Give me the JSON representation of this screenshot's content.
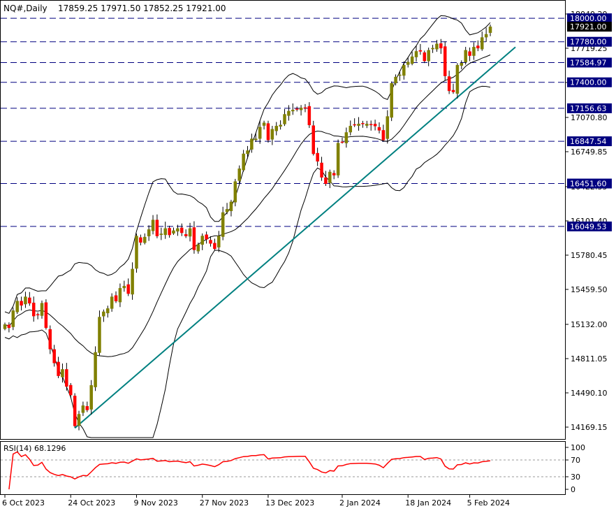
{
  "header": {
    "symbol": "NQ#,Daily",
    "ohlc": "17859.25 17971.50 17852.25 17921.00"
  },
  "rsi_header": "RSI(14) 68.1296",
  "chart_data": [
    {
      "type": "candlestick",
      "title": "NQ#,Daily",
      "y_ticks": [
        18040.2,
        17719.25,
        17398.3,
        17070.8,
        16749.85,
        16422.35,
        16101.4,
        15780.45,
        15459.5,
        15132.0,
        14811.05,
        14490.1,
        14169.15
      ],
      "y_tick_labels": [
        "18040.20",
        "17719.25",
        "17398.30",
        "17070.80",
        "16749.85",
        "16422.35",
        "16101.40",
        "15780.45",
        "15459.50",
        "15132.00",
        "14811.05",
        "14490.10",
        "14169.15"
      ],
      "x_tick_labels": [
        "6 Oct 2023",
        "24 Oct 2023",
        "9 Nov 2023",
        "27 Nov 2023",
        "13 Dec 2023",
        "2 Jan 2024",
        "18 Jan 2024",
        "5 Feb 2024"
      ],
      "ylim": [
        14060,
        18100
      ],
      "current_price": 17921.0,
      "current_price_label": "17921.00",
      "horizontal_levels": [
        18000.0,
        17780.0,
        17584.97,
        17400.0,
        17156.63,
        16847.54,
        16451.6,
        16049.53
      ],
      "horizontal_level_labels": [
        "18000.00",
        "17780.00",
        "17584.97",
        "17400.00",
        "17156.63",
        "16847.54",
        "16451.60",
        "16049.53"
      ],
      "trendline": [
        [
          14160,
          17730
        ]
      ],
      "closes": [
        15130,
        15100,
        15260,
        15350,
        15310,
        15390,
        15330,
        15210,
        15220,
        15330,
        15100,
        14900,
        14770,
        14650,
        14710,
        14550,
        14470,
        14180,
        14290,
        14370,
        14330,
        14560,
        14870,
        15200,
        15250,
        15280,
        15390,
        15350,
        15470,
        15490,
        15420,
        15650,
        15960,
        15900,
        15950,
        16020,
        16110,
        15960,
        15980,
        16030,
        15970,
        16010,
        16030,
        15990,
        15960,
        16030,
        15830,
        15880,
        15960,
        15930,
        15890,
        15840,
        15960,
        16180,
        16210,
        16280,
        16470,
        16590,
        16730,
        16760,
        16870,
        16870,
        16980,
        17020,
        16860,
        16960,
        16990,
        17000,
        17100,
        17130,
        17140,
        17150,
        17160,
        17160,
        17000,
        16730,
        16660,
        16510,
        16450,
        16560,
        16530,
        16830,
        16840,
        16930,
        16990,
        17000,
        17010,
        17010,
        17010,
        17000,
        16990,
        16950,
        16860,
        17080,
        17390,
        17450,
        17470,
        17560,
        17590,
        17640,
        17690,
        17690,
        17600,
        17700,
        17720,
        17760,
        17720,
        17460,
        17320,
        17310,
        17560,
        17580,
        17700,
        17650,
        17730,
        17720,
        17820,
        17850,
        17920
      ],
      "bollinger": {
        "period": 20,
        "stddev": 2
      },
      "rsi": {
        "period": 14,
        "current": 68.1296,
        "levels": [
          70,
          30
        ],
        "y_tick_labels": [
          "100",
          "70",
          "30",
          "0"
        ]
      }
    }
  ]
}
